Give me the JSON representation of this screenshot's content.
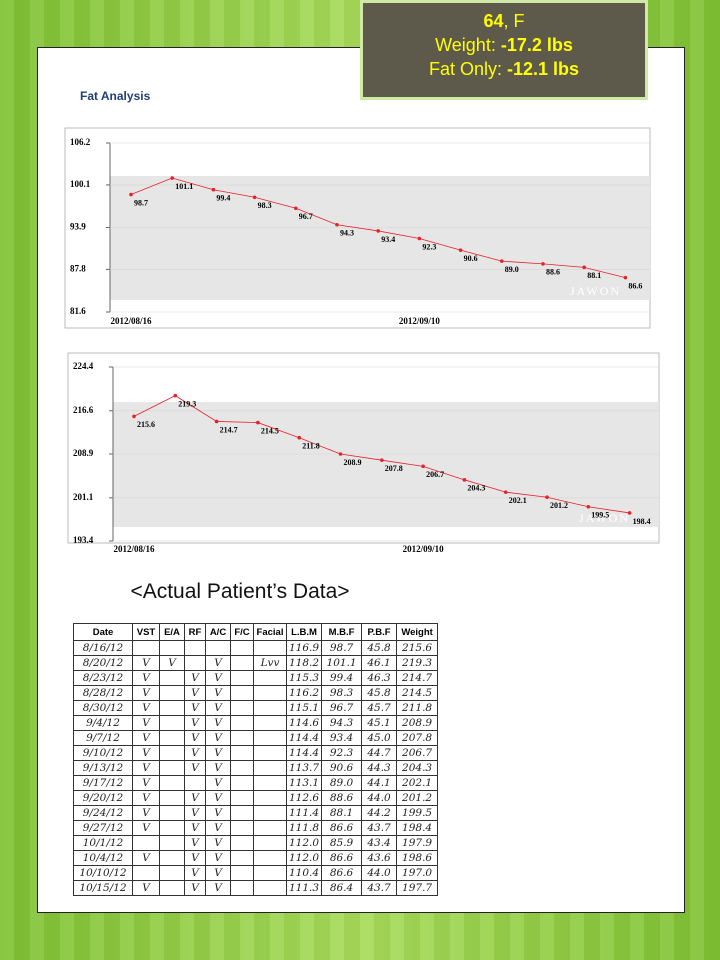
{
  "header": {
    "age": "64",
    "sex": ", F",
    "weight_label": "Weight: ",
    "weight_value": "-17.2 lbs",
    "fat_label": "Fat Only: ",
    "fat_value": "-12.1 lbs"
  },
  "chart_data": [
    {
      "type": "line",
      "title": "Fat Analysis",
      "watermark": "JAWON",
      "color": "#e8202a",
      "grid": true,
      "categories": [
        "2012/08/16",
        null,
        null,
        null,
        null,
        null,
        null,
        "2012/09/10",
        null,
        null,
        null,
        null,
        null
      ],
      "values": [
        98.7,
        101.1,
        99.4,
        98.3,
        96.7,
        94.3,
        93.4,
        92.3,
        90.6,
        89.0,
        88.6,
        88.1,
        86.6
      ],
      "value_labels": [
        "98.7",
        "101.1",
        "99.4",
        "98.3",
        "96.7",
        "94.3",
        "93.4",
        "92.3",
        "90.6",
        "89.0",
        "88.6",
        "88.1",
        "86.6"
      ],
      "ylim": [
        81.6,
        106.2
      ],
      "yticks": [
        81.6,
        87.8,
        93.9,
        100.1,
        106.2
      ]
    },
    {
      "type": "line",
      "watermark": "JAWON",
      "color": "#e8202a",
      "grid": true,
      "categories": [
        "2012/08/16",
        null,
        null,
        null,
        null,
        null,
        null,
        "2012/09/10",
        null,
        null,
        null,
        null,
        null
      ],
      "values": [
        215.6,
        219.3,
        214.7,
        214.5,
        211.8,
        208.9,
        207.8,
        206.7,
        204.3,
        202.1,
        201.2,
        199.5,
        198.4
      ],
      "value_labels": [
        "215.6",
        "219.3",
        "214.7",
        "214.5",
        "211.8",
        "208.9",
        "207.8",
        "206.7",
        "204.3",
        "202.1",
        "201.2",
        "199.5",
        "198.4"
      ],
      "ylim": [
        193.4,
        224.4
      ],
      "yticks": [
        193.4,
        201.1,
        208.9,
        216.6,
        224.4
      ]
    }
  ],
  "caption": "<Actual Patient’s Data>",
  "table": {
    "columns": [
      "Date",
      "VST",
      "E/A",
      "RF",
      "A/C",
      "F/C",
      "Facial",
      "L.B.M",
      "M.B.F",
      "P.B.F",
      "Weight"
    ],
    "rows": [
      [
        "8/16/12",
        null,
        null,
        null,
        null,
        null,
        null,
        "116.9",
        "98.7",
        "45.8",
        "215.6"
      ],
      [
        "8/20/12",
        "V",
        "V",
        null,
        "V",
        null,
        "Lvv",
        "118.2",
        "101.1",
        "46.1",
        "219.3"
      ],
      [
        "8/23/12",
        "V",
        null,
        "V",
        "V",
        null,
        null,
        "115.3",
        "99.4",
        "46.3",
        "214.7"
      ],
      [
        "8/28/12",
        "V",
        null,
        "V",
        "V",
        null,
        null,
        "116.2",
        "98.3",
        "45.8",
        "214.5"
      ],
      [
        "8/30/12",
        "V",
        null,
        "V",
        "V",
        null,
        null,
        "115.1",
        "96.7",
        "45.7",
        "211.8"
      ],
      [
        "9/4/12",
        "V",
        null,
        "V",
        "V",
        null,
        null,
        "114.6",
        "94.3",
        "45.1",
        "208.9"
      ],
      [
        "9/7/12",
        "V",
        null,
        "V",
        "V",
        null,
        null,
        "114.4",
        "93.4",
        "45.0",
        "207.8"
      ],
      [
        "9/10/12",
        "V",
        null,
        "V",
        "V",
        null,
        null,
        "114.4",
        "92.3",
        "44.7",
        "206.7"
      ],
      [
        "9/13/12",
        "V",
        null,
        "V",
        "V",
        null,
        null,
        "113.7",
        "90.6",
        "44.3",
        "204.3"
      ],
      [
        "9/17/12",
        "V",
        null,
        null,
        "V",
        null,
        null,
        "113.1",
        "89.0",
        "44.1",
        "202.1"
      ],
      [
        "9/20/12",
        "V",
        null,
        "V",
        "V",
        null,
        null,
        "112.6",
        "88.6",
        "44.0",
        "201.2"
      ],
      [
        "9/24/12",
        "V",
        null,
        "V",
        "V",
        null,
        null,
        "111.4",
        "88.1",
        "44.2",
        "199.5"
      ],
      [
        "9/27/12",
        "V",
        null,
        "V",
        "V",
        null,
        null,
        "111.8",
        "86.6",
        "43.7",
        "198.4"
      ],
      [
        "10/1/12",
        null,
        null,
        "V",
        "V",
        null,
        null,
        "112.0",
        "85.9",
        "43.4",
        "197.9"
      ],
      [
        "10/4/12",
        "V",
        null,
        "V",
        "V",
        null,
        null,
        "112.0",
        "86.6",
        "43.6",
        "198.6"
      ],
      [
        "10/10/12",
        null,
        null,
        "V",
        "V",
        null,
        null,
        "110.4",
        "86.6",
        "44.0",
        "197.0"
      ],
      [
        "10/15/12",
        "V",
        null,
        "V",
        "V",
        null,
        null,
        "111.3",
        "86.4",
        "43.7",
        "197.7"
      ]
    ]
  }
}
